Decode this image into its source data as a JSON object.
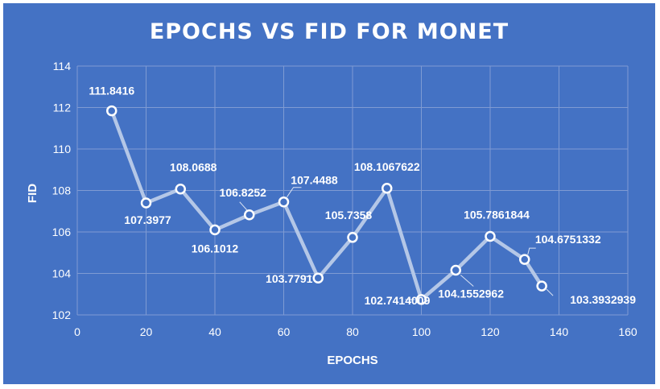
{
  "chart_data": {
    "type": "line",
    "title": "EPOCHS VS FID FOR MONET",
    "xlabel": "EPOCHS",
    "ylabel": "FID",
    "xlim": [
      0,
      160
    ],
    "ylim": [
      102,
      114
    ],
    "xticks": [
      0,
      20,
      40,
      60,
      80,
      100,
      120,
      140,
      160
    ],
    "yticks": [
      102,
      104,
      106,
      108,
      110,
      112,
      114
    ],
    "grid": true,
    "legend": "none",
    "series": [
      {
        "x": [
          10,
          20,
          30,
          40,
          50,
          60,
          70,
          80,
          90,
          100,
          110,
          120,
          130,
          135
        ],
        "values": [
          111.8416,
          107.3977,
          108.0688,
          106.1012,
          106.8252,
          107.4488,
          103.7791,
          105.7358,
          108.1067622,
          102.7414009,
          104.1552962,
          105.7861844,
          104.6751332,
          103.3932939
        ],
        "labels": [
          "111.8416",
          "107.3977",
          "108.0688",
          "106.1012",
          "106.8252",
          "107.4488",
          "103.7791",
          "105.7358",
          "108.1067622",
          "102.7414009",
          "104.1552962",
          "105.7861844",
          "104.6751332",
          "103.3932939"
        ]
      }
    ],
    "colors": {
      "background": "#4472c4",
      "line": "#b4c7e7",
      "marker_fill": "#4472c4",
      "marker_edge": "#ffffff",
      "text": "#ffffff",
      "gridline": "#7f9bd3"
    }
  }
}
